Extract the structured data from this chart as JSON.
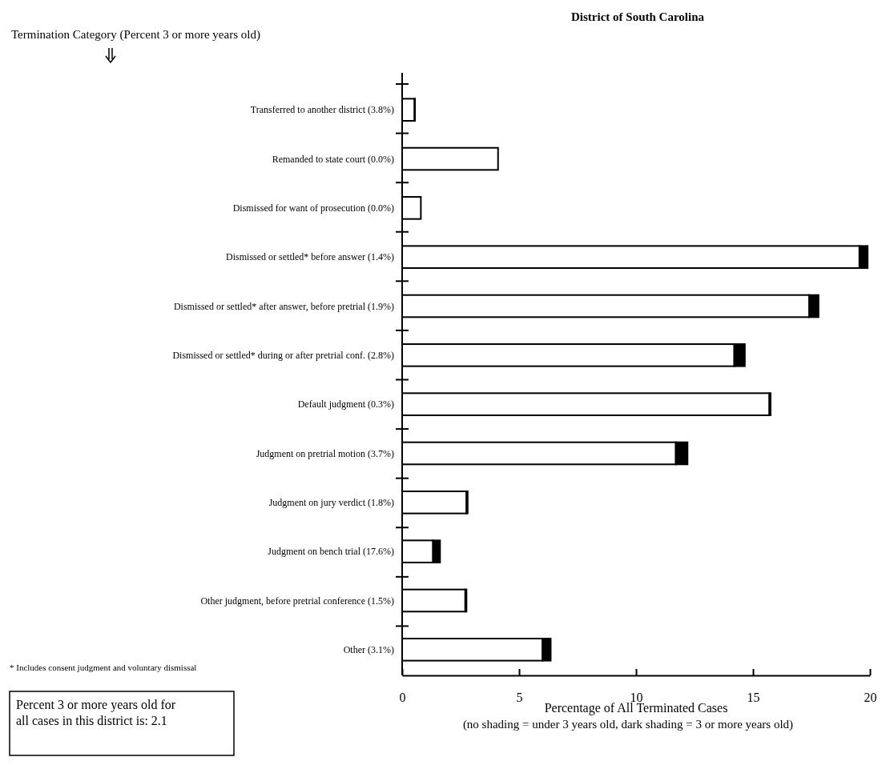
{
  "chart_data": {
    "type": "bar",
    "orientation": "horizontal",
    "stacked": true,
    "title": "District of South Carolina",
    "ylabel": "Termination Category (Percent 3 or more years old)",
    "xlabel": "Percentage of All Terminated Cases",
    "categories": [
      "Transferred to another district (3.8%)",
      "Remanded to state court (0.0%)",
      "Dismissed for want of prosecution (0.0%)",
      "Dismissed or settled* before answer (1.4%)",
      "Dismissed or settled* after answer, before pretrial (1.9%)",
      "Dismissed or settled* during or after pretrial conf. (2.8%)",
      "Default judgment (0.3%)",
      "Judgment on pretrial motion (3.7%)",
      "Judgment on jury verdict (1.8%)",
      "Judgment on bench trial (17.6%)",
      "Other judgment, before pretrial conference (1.5%)",
      "Other (3.1%)"
    ],
    "series": [
      {
        "color": "#ffffff",
        "values": [
          0.53,
          4.1,
          0.8,
          19.55,
          17.4,
          14.2,
          15.7,
          11.7,
          2.75,
          1.32,
          2.7,
          6.0
        ]
      },
      {
        "color": "#000000",
        "values": [
          0.02,
          0,
          0,
          0.35,
          0.4,
          0.45,
          0.05,
          0.5,
          0.05,
          0.3,
          0.05,
          0.35
        ]
      }
    ],
    "xlim": [
      0,
      20
    ],
    "xticks": [
      0,
      5,
      10,
      15,
      20
    ],
    "annotations": [
      "* Includes consent judgment and voluntary dismissal",
      "(no shading = under 3 years old, dark shading = 3 or more years old)",
      "Percent 3 or more years old for all cases in this district is:  2.1"
    ]
  }
}
